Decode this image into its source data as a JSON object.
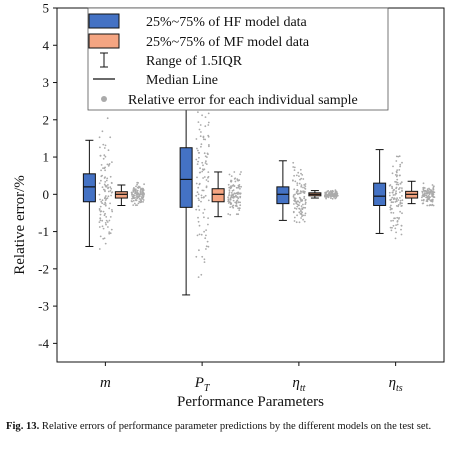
{
  "chart_data": {
    "type": "box",
    "title": "",
    "xlabel": "Performance Parameters",
    "ylabel": "Relative error/%",
    "ylim": [
      -4.5,
      5
    ],
    "yticks": [
      -4,
      -3,
      -2,
      -1,
      0,
      1,
      2,
      3,
      4,
      5
    ],
    "grid": false,
    "legend_position": "top-center",
    "categories": [
      {
        "base": "m",
        "sub": ""
      },
      {
        "base": "P",
        "sub": "T"
      },
      {
        "base": "η",
        "sub": "tt"
      },
      {
        "base": "η",
        "sub": "ts"
      }
    ],
    "series": [
      {
        "name": "25%~75% of HF model data",
        "color": "#4472C4",
        "boxes": [
          {
            "whisker_low": -1.4,
            "q1": -0.2,
            "median": 0.2,
            "q3": 0.55,
            "whisker_high": 1.45
          },
          {
            "whisker_low": -2.7,
            "q1": -0.35,
            "median": 0.4,
            "q3": 1.25,
            "whisker_high": 3.6
          },
          {
            "whisker_low": -0.7,
            "q1": -0.25,
            "median": 0.0,
            "q3": 0.2,
            "whisker_high": 0.9
          },
          {
            "whisker_low": -1.05,
            "q1": -0.3,
            "median": -0.05,
            "q3": 0.3,
            "whisker_high": 1.2
          }
        ],
        "sample_spread": [
          [
            -1.6,
            2.1
          ],
          [
            -3.2,
            2.8
          ],
          [
            -0.8,
            1.1
          ],
          [
            -1.2,
            1.5
          ]
        ]
      },
      {
        "name": "25%~75% of MF model data",
        "color": "#F4A582",
        "boxes": [
          {
            "whisker_low": -0.3,
            "q1": -0.1,
            "median": 0.0,
            "q3": 0.07,
            "whisker_high": 0.25
          },
          {
            "whisker_low": -0.6,
            "q1": -0.2,
            "median": 0.0,
            "q3": 0.15,
            "whisker_high": 0.6
          },
          {
            "whisker_low": -0.1,
            "q1": -0.04,
            "median": 0.0,
            "q3": 0.04,
            "whisker_high": 0.1
          },
          {
            "whisker_low": -0.25,
            "q1": -0.1,
            "median": 0.0,
            "q3": 0.08,
            "whisker_high": 0.35
          }
        ],
        "sample_spread": [
          [
            -0.35,
            0.35
          ],
          [
            -0.7,
            0.6
          ],
          [
            -0.12,
            0.12
          ],
          [
            -0.3,
            0.4
          ]
        ]
      }
    ],
    "legend": [
      {
        "symbol": "box-hf",
        "label": "25%~75% of HF model data"
      },
      {
        "symbol": "box-mf",
        "label": "25%~75% of MF model data"
      },
      {
        "symbol": "range",
        "label": "Range of 1.5IQR"
      },
      {
        "symbol": "median",
        "label": "Median Line"
      },
      {
        "symbol": "dot",
        "label": "Relative error for each individual sample"
      }
    ],
    "sample_color": "#AAAAAA"
  },
  "caption": {
    "label": "Fig. 13.",
    "text": "Relative errors of performance parameter predictions by the different models on the test set."
  }
}
